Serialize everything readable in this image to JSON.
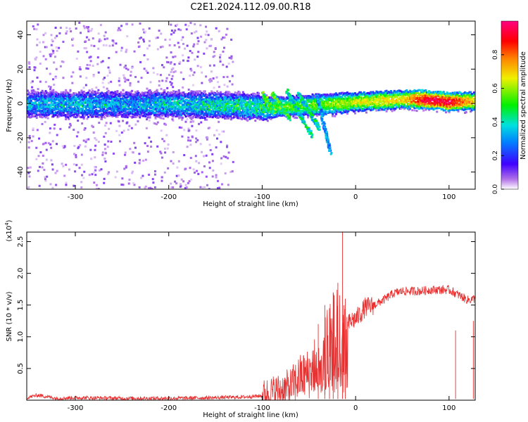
{
  "title": "C2E1.2024.112.09.00.R18",
  "colors": {
    "snr_line": "#e83030",
    "axis": "#000000"
  },
  "chart_data": [
    {
      "type": "heatmap",
      "xlabel": "Height of straight line (km)",
      "ylabel": "Frequency (Hz)",
      "xlim": [
        -352,
        128
      ],
      "ylim": [
        -50,
        48
      ],
      "x_ticks": [
        -300,
        -200,
        -100,
        0,
        100
      ],
      "x_tick_labels": [
        "-300",
        "-200",
        "-100",
        "0",
        "100"
      ],
      "y_ticks": [
        -40,
        -20,
        0,
        20,
        40
      ],
      "y_tick_labels": [
        "-40",
        "-20",
        "0",
        "20",
        "40"
      ],
      "colorbar": {
        "label": "Normalized spectral amplitude",
        "range": [
          0,
          1
        ],
        "ticks": [
          0.0,
          0.2,
          0.4,
          0.6,
          0.8
        ],
        "tick_labels": [
          "0.0",
          "0.2",
          "0.4",
          "0.6",
          "0.8"
        ],
        "colormap": [
          "#ffffff",
          "#e8cff5",
          "#a040e0",
          "#4000ff",
          "#0060ff",
          "#00e0e0",
          "#00f000",
          "#f0f000",
          "#ff8000",
          "#ff0000",
          "#ff0080"
        ]
      },
      "band": [
        {
          "x": -350,
          "f": 0.0,
          "amp": 0.35
        },
        {
          "x": -300,
          "f": 0.0,
          "amp": 0.4
        },
        {
          "x": -250,
          "f": 0.0,
          "amp": 0.35
        },
        {
          "x": -200,
          "f": 0.0,
          "amp": 0.4
        },
        {
          "x": -150,
          "f": -0.5,
          "amp": 0.45
        },
        {
          "x": -110,
          "f": -1.0,
          "amp": 0.5
        },
        {
          "x": -95,
          "f": -2.0,
          "amp": 0.5
        },
        {
          "x": -20,
          "f": 0.5,
          "amp": 0.6
        },
        {
          "x": 0,
          "f": 1.5,
          "amp": 0.65
        },
        {
          "x": 50,
          "f": 3.0,
          "amp": 0.7
        },
        {
          "x": 75,
          "f": 3.0,
          "amp": 0.95
        },
        {
          "x": 100,
          "f": 1.5,
          "amp": 0.95
        },
        {
          "x": 125,
          "f": 2.0,
          "amp": 0.7
        }
      ],
      "streaks": [
        {
          "x": [
            -100,
            -88
          ],
          "f": [
            6,
            -5
          ],
          "amp": 0.5
        },
        {
          "x": [
            -90,
            -72
          ],
          "f": [
            6,
            -8
          ],
          "amp": 0.5
        },
        {
          "x": [
            -75,
            -48
          ],
          "f": [
            8,
            -18
          ],
          "amp": 0.4
        },
        {
          "x": [
            -62,
            -40
          ],
          "f": [
            6,
            -14
          ],
          "amp": 0.4
        },
        {
          "x": [
            -42,
            -28
          ],
          "f": [
            4,
            -28
          ],
          "amp": 0.3
        }
      ]
    },
    {
      "type": "line",
      "xlabel": "Height of straight line (km)",
      "ylabel": "SNR (10 * v/v)",
      "y_scale_label": "(x10",
      "y_scale_exp": "4",
      "y_scale_close": ")",
      "xlim": [
        -352,
        128
      ],
      "ylim": [
        0,
        2.65
      ],
      "x_ticks": [
        -300,
        -200,
        -100,
        0,
        100
      ],
      "x_tick_labels": [
        "-300",
        "-200",
        "-100",
        "0",
        "100"
      ],
      "y_ticks": [
        0.5,
        1.0,
        1.5,
        2.0,
        2.5
      ],
      "y_tick_labels": [
        "0.5",
        "1.0",
        "1.5",
        "2.0",
        "2.5"
      ],
      "series": [
        {
          "color": "#e83030",
          "x": [
            -352,
            -340,
            -320,
            -300,
            -250,
            -200,
            -150,
            -120,
            -100,
            -90,
            -80,
            -70,
            -60,
            -50,
            -40,
            -30,
            -25,
            -20,
            -15,
            -12,
            -10,
            -5,
            0,
            5,
            10,
            15,
            20,
            30,
            40,
            50,
            60,
            70,
            80,
            90,
            100,
            110,
            120,
            128
          ],
          "y": [
            0.04,
            0.08,
            0.03,
            0.04,
            0.03,
            0.03,
            0.04,
            0.05,
            0.07,
            0.12,
            0.15,
            0.2,
            0.35,
            0.42,
            0.65,
            0.85,
            1.0,
            1.1,
            1.05,
            1.0,
            1.15,
            1.25,
            1.28,
            1.36,
            1.46,
            1.48,
            1.5,
            1.58,
            1.68,
            1.72,
            1.72,
            1.72,
            1.74,
            1.74,
            1.74,
            1.66,
            1.58,
            1.6
          ]
        }
      ],
      "spikes": [
        {
          "x": -40,
          "y": 1.2
        },
        {
          "x": -33,
          "y": 1.5
        },
        {
          "x": -28,
          "y": 1.45
        },
        {
          "x": -24,
          "y": 1.7
        },
        {
          "x": -19,
          "y": 1.85
        },
        {
          "x": -14,
          "y": 2.65
        },
        {
          "x": -11,
          "y": 1.6
        },
        {
          "x": 107,
          "y": 1.1
        },
        {
          "x": 126,
          "y": 1.25
        }
      ]
    }
  ]
}
